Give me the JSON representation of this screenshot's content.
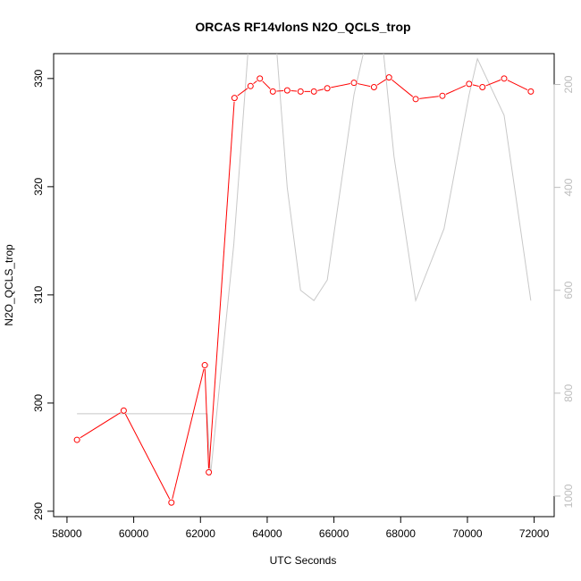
{
  "chart_data": {
    "type": "line",
    "title": "ORCAS RF14vlonS N2O_QCLS_trop",
    "xlabel": "UTC Seconds",
    "ylabel": "N2O_QCLS_trop",
    "xlim": [
      57600,
      72600
    ],
    "ylim": [
      289.5,
      332.3
    ],
    "y2lim": [
      1040,
      140
    ],
    "x_ticks": [
      58000,
      60000,
      62000,
      64000,
      66000,
      68000,
      70000,
      72000
    ],
    "x_tick_labels": [
      "58000",
      "60000",
      "62000",
      "64000",
      "66000",
      "68000",
      "70000",
      "72000"
    ],
    "y_ticks": [
      290,
      300,
      310,
      320,
      330
    ],
    "y_tick_labels": [
      "290",
      "300",
      "310",
      "320",
      "330"
    ],
    "y2_ticks": [
      200,
      400,
      600,
      800,
      1000
    ],
    "y2_tick_labels": [
      "200",
      "400",
      "600",
      "800",
      "1000"
    ],
    "series": [
      {
        "axis": "left",
        "color": "#ff0000",
        "style": "line+open-circle",
        "x": [
          58300,
          59700,
          61130,
          62130,
          62250,
          63020,
          63500,
          63780,
          64170,
          64600,
          65000,
          65400,
          65800,
          66600,
          67200,
          67650,
          68450,
          69250,
          70050,
          70450,
          71100,
          71900
        ],
        "y": [
          296.6,
          299.3,
          290.8,
          303.5,
          293.6,
          328.2,
          329.3,
          330.0,
          328.8,
          328.9,
          328.8,
          328.8,
          329.1,
          329.6,
          329.2,
          330.1,
          328.1,
          328.4,
          329.5,
          329.2,
          330.0,
          328.8
        ]
      },
      {
        "axis": "right",
        "color": "#c8c8c8",
        "style": "line",
        "x": [
          58300,
          59800,
          61100,
          62200,
          62300,
          63000,
          63500,
          64150,
          64600,
          65000,
          65400,
          65800,
          66600,
          67300,
          67800,
          68450,
          69300,
          70050,
          70300,
          71100,
          71900
        ],
        "y": [
          840,
          840,
          840,
          840,
          960,
          510,
          70,
          20,
          400,
          600,
          620,
          580,
          220,
          20,
          340,
          620,
          480,
          220,
          150,
          260,
          620
        ]
      }
    ]
  }
}
